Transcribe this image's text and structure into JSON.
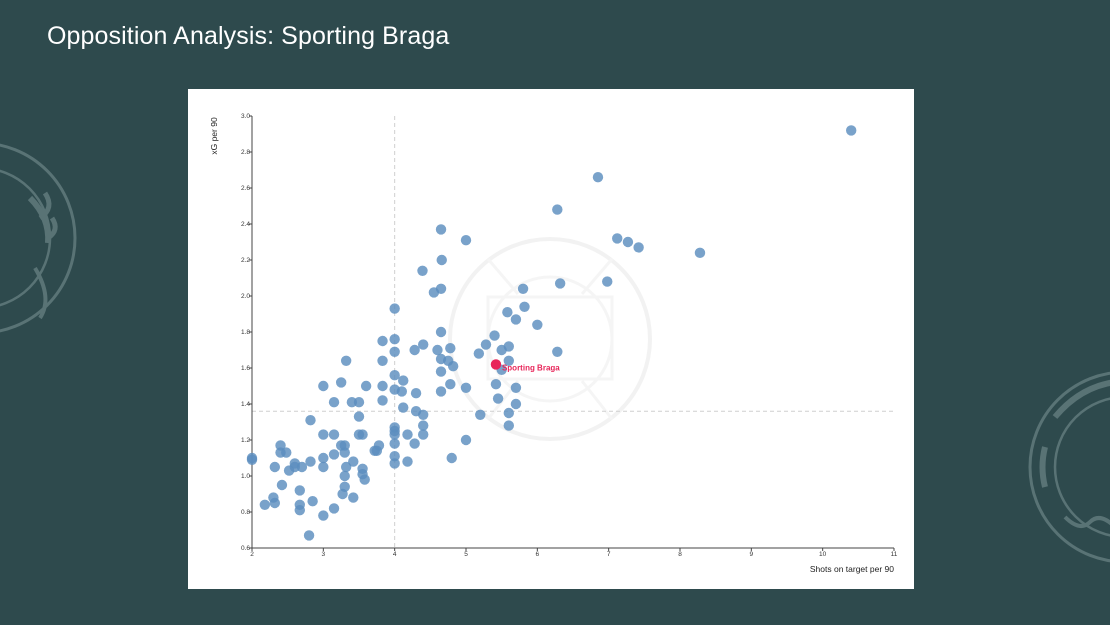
{
  "page": {
    "title": "Opposition Analysis: Sporting Braga"
  },
  "colors": {
    "background": "#2e4a4d",
    "point": "#5b8ebe",
    "highlight": "#e8265a",
    "average_line": "#c8c8c8"
  },
  "chart_data": {
    "type": "scatter",
    "title": "",
    "xlabel": "Shots on target per 90",
    "ylabel": "xG per 90",
    "xlim": [
      2,
      11
    ],
    "ylim": [
      0.6,
      3.0
    ],
    "x_ticks": [
      2,
      3,
      4,
      5,
      6,
      7,
      8,
      9,
      10,
      11
    ],
    "x_tick_labels": [
      "2",
      "3",
      "4",
      "5",
      "6",
      "7",
      "8",
      "9",
      "10",
      "11"
    ],
    "y_ticks": [
      0.6,
      0.8,
      1.0,
      1.2,
      1.4,
      1.6,
      1.8,
      2.0,
      2.2,
      2.4,
      2.6,
      2.8,
      3.0
    ],
    "y_tick_labels": [
      "0.6",
      "0.8",
      "1.0",
      "1.2",
      "1.4",
      "1.6",
      "1.8",
      "2.0",
      "2.2",
      "2.4",
      "2.6",
      "2.8",
      "3.0"
    ],
    "grid": false,
    "reference_lines": {
      "x": 4.0,
      "y": 1.36
    },
    "highlight": {
      "label": "Sporting Braga",
      "x": 5.42,
      "y": 1.62
    },
    "points": [
      [
        10.4,
        2.92
      ],
      [
        6.85,
        2.66
      ],
      [
        6.28,
        2.48
      ],
      [
        7.12,
        2.32
      ],
      [
        7.27,
        2.3
      ],
      [
        7.42,
        2.27
      ],
      [
        8.28,
        2.24
      ],
      [
        6.98,
        2.08
      ],
      [
        6.32,
        2.07
      ],
      [
        5.0,
        2.31
      ],
      [
        4.65,
        2.37
      ],
      [
        4.66,
        2.2
      ],
      [
        4.39,
        2.14
      ],
      [
        4.55,
        2.02
      ],
      [
        4.65,
        2.04
      ],
      [
        5.8,
        2.04
      ],
      [
        5.82,
        1.94
      ],
      [
        5.58,
        1.91
      ],
      [
        5.7,
        1.87
      ],
      [
        6.0,
        1.84
      ],
      [
        6.28,
        1.69
      ],
      [
        5.4,
        1.78
      ],
      [
        5.28,
        1.73
      ],
      [
        5.18,
        1.68
      ],
      [
        5.5,
        1.7
      ],
      [
        5.6,
        1.72
      ],
      [
        5.6,
        1.64
      ],
      [
        5.5,
        1.59
      ],
      [
        5.42,
        1.51
      ],
      [
        5.7,
        1.49
      ],
      [
        5.45,
        1.43
      ],
      [
        5.7,
        1.4
      ],
      [
        5.6,
        1.35
      ],
      [
        5.6,
        1.28
      ],
      [
        5.2,
        1.34
      ],
      [
        5.0,
        1.49
      ],
      [
        5.0,
        1.2
      ],
      [
        4.8,
        1.1
      ],
      [
        4.65,
        1.8
      ],
      [
        4.6,
        1.7
      ],
      [
        4.78,
        1.71
      ],
      [
        4.65,
        1.65
      ],
      [
        4.75,
        1.64
      ],
      [
        4.82,
        1.61
      ],
      [
        4.65,
        1.58
      ],
      [
        4.78,
        1.51
      ],
      [
        4.65,
        1.47
      ],
      [
        4.4,
        1.73
      ],
      [
        4.28,
        1.7
      ],
      [
        4.0,
        1.93
      ],
      [
        4.0,
        1.76
      ],
      [
        4.0,
        1.69
      ],
      [
        3.83,
        1.75
      ],
      [
        3.83,
        1.64
      ],
      [
        3.32,
        1.64
      ],
      [
        4.0,
        1.56
      ],
      [
        4.12,
        1.53
      ],
      [
        4.1,
        1.47
      ],
      [
        4.0,
        1.48
      ],
      [
        4.3,
        1.46
      ],
      [
        3.83,
        1.5
      ],
      [
        3.6,
        1.5
      ],
      [
        3.4,
        1.41
      ],
      [
        3.5,
        1.41
      ],
      [
        3.15,
        1.41
      ],
      [
        3.25,
        1.52
      ],
      [
        3.0,
        1.5
      ],
      [
        3.83,
        1.42
      ],
      [
        4.12,
        1.38
      ],
      [
        4.3,
        1.36
      ],
      [
        4.4,
        1.34
      ],
      [
        3.5,
        1.33
      ],
      [
        4.4,
        1.28
      ],
      [
        4.0,
        1.27
      ],
      [
        4.0,
        1.25
      ],
      [
        4.0,
        1.23
      ],
      [
        4.0,
        1.18
      ],
      [
        4.18,
        1.23
      ],
      [
        4.4,
        1.23
      ],
      [
        4.28,
        1.18
      ],
      [
        3.78,
        1.17
      ],
      [
        3.5,
        1.23
      ],
      [
        3.55,
        1.23
      ],
      [
        3.3,
        1.17
      ],
      [
        3.25,
        1.17
      ],
      [
        3.3,
        1.13
      ],
      [
        3.15,
        1.12
      ],
      [
        3.0,
        1.23
      ],
      [
        3.15,
        1.23
      ],
      [
        3.0,
        1.1
      ],
      [
        3.0,
        1.05
      ],
      [
        4.0,
        1.11
      ],
      [
        4.0,
        1.07
      ],
      [
        4.18,
        1.08
      ],
      [
        3.72,
        1.14
      ],
      [
        3.75,
        1.14
      ],
      [
        3.42,
        1.08
      ],
      [
        3.55,
        1.04
      ],
      [
        3.32,
        1.05
      ],
      [
        3.55,
        1.01
      ],
      [
        3.58,
        0.98
      ],
      [
        3.3,
        1.0
      ],
      [
        3.3,
        0.94
      ],
      [
        3.27,
        0.9
      ],
      [
        3.42,
        0.88
      ],
      [
        3.15,
        0.82
      ],
      [
        3.0,
        0.78
      ],
      [
        2.82,
        1.31
      ],
      [
        2.82,
        1.08
      ],
      [
        2.7,
        1.05
      ],
      [
        2.6,
        1.07
      ],
      [
        2.6,
        1.05
      ],
      [
        2.52,
        1.03
      ],
      [
        2.48,
        1.13
      ],
      [
        2.4,
        1.17
      ],
      [
        2.4,
        1.13
      ],
      [
        2.32,
        1.05
      ],
      [
        2.42,
        0.95
      ],
      [
        2.67,
        0.92
      ],
      [
        2.85,
        0.86
      ],
      [
        2.67,
        0.84
      ],
      [
        2.67,
        0.81
      ],
      [
        2.3,
        0.88
      ],
      [
        2.32,
        0.85
      ],
      [
        2.18,
        0.84
      ],
      [
        2.0,
        1.1
      ],
      [
        2.0,
        1.09
      ],
      [
        2.8,
        0.67
      ]
    ]
  }
}
